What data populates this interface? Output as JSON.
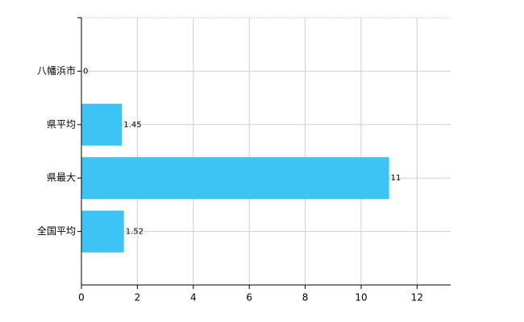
{
  "chart_data": {
    "type": "bar",
    "orientation": "horizontal",
    "categories": [
      "八幡浜市",
      "県平均",
      "県最大",
      "全国平均"
    ],
    "values": [
      0,
      1.45,
      11,
      1.52
    ],
    "color": "#3ec3f5",
    "xlim": [
      0,
      13.2
    ],
    "xticks": [
      0,
      2,
      4,
      6,
      8,
      10,
      12
    ],
    "grid": true
  }
}
